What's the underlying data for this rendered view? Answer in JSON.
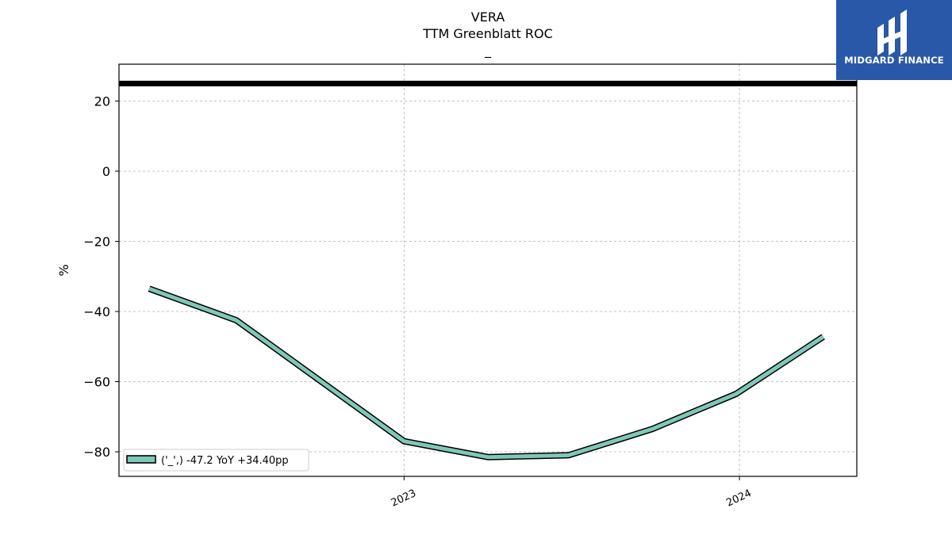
{
  "chart_data": {
    "type": "line",
    "title_lines": [
      "VERA",
      "TTM Greenblatt ROC",
      "_"
    ],
    "ylabel": "%",
    "xlabel": "",
    "ylim": [
      -87,
      30.5
    ],
    "xlim": [
      2022.15,
      2024.35
    ],
    "yticks": [
      20,
      0,
      -20,
      -40,
      -60,
      -80
    ],
    "ytick_labels": [
      "20",
      "0",
      "−20",
      "−40",
      "−60",
      "−80"
    ],
    "xticks": [
      2023,
      2024
    ],
    "xtick_labels": [
      "2023",
      "2024"
    ],
    "grid": true,
    "reference_line": {
      "y": 25,
      "color": "#000000"
    },
    "series": [
      {
        "name": "('_',) -47.2 YoY +34.40pp",
        "color": "#7fc8b8",
        "x": [
          2022.24,
          2022.5,
          2023.0,
          2023.25,
          2023.49,
          2023.74,
          2023.99,
          2024.25
        ],
        "y": [
          -33.5,
          -42.5,
          -77.0,
          -81.5,
          -81.0,
          -73.5,
          -63.5,
          -47.2
        ]
      }
    ],
    "legend_position": "lower-left"
  },
  "brand": {
    "name": "MIDGARD FINANCE",
    "color": "#2a58a8"
  }
}
